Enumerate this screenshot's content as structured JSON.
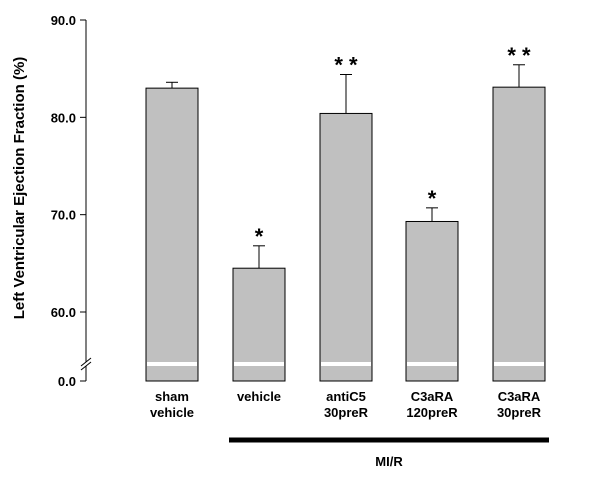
{
  "chart_data": {
    "type": "bar",
    "title": "",
    "ylabel": "Left Ventricular Ejection Fraction (%)",
    "xlabel": "",
    "ylim": [
      55,
      90
    ],
    "axis_break": true,
    "y_ticks": [
      {
        "value": 60,
        "label": "60.0"
      },
      {
        "value": 70,
        "label": "70.0"
      },
      {
        "value": 80,
        "label": "80.0"
      },
      {
        "value": 90,
        "label": "90.0"
      }
    ],
    "y_origin_label": "0.0",
    "categories": [
      [
        "sham",
        "vehicle"
      ],
      [
        "vehicle"
      ],
      [
        "antiC5",
        "30preR"
      ],
      [
        "C3aRA",
        "120preR"
      ],
      [
        "C3aRA",
        "30preR"
      ]
    ],
    "values": [
      83.0,
      64.5,
      80.4,
      69.3,
      83.1
    ],
    "errors": [
      0.6,
      2.3,
      4.0,
      1.4,
      2.3
    ],
    "significance": [
      "",
      "*",
      "**",
      "*",
      "**"
    ],
    "group_label": "MI/R",
    "group_span": [
      1,
      4
    ],
    "bar_color": "#c0c0c0",
    "grid": false
  }
}
